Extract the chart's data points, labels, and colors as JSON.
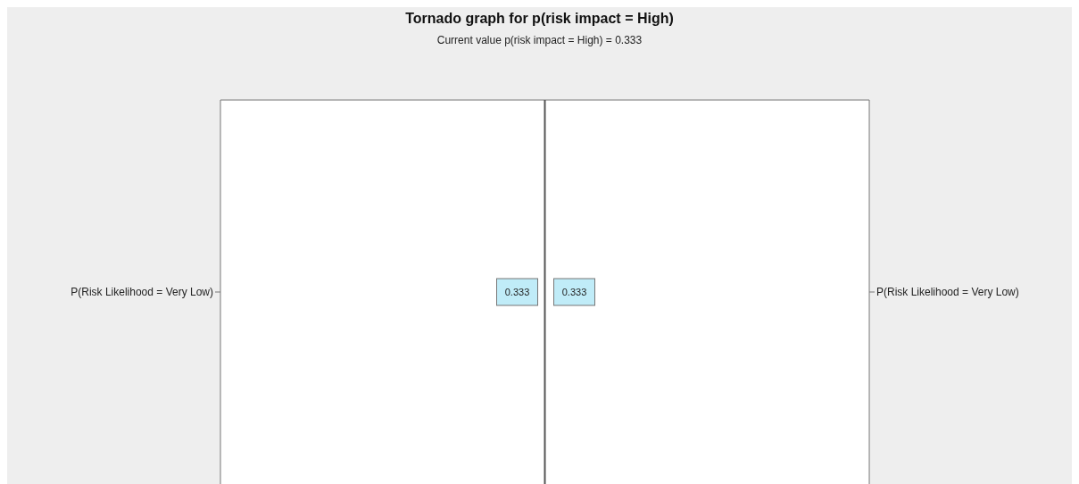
{
  "chart_data": {
    "type": "other",
    "title": "Tornado graph for p(risk impact = High)",
    "subtitle": "Current value p(risk impact = High) = 0.333",
    "categories": [
      "P(Risk Likelihood = Very Low)"
    ],
    "series": [
      {
        "color": "#c0ecf8",
        "values": [
          0.333
        ]
      },
      {
        "color": "#c0ecf8",
        "values": [
          0.333
        ]
      }
    ],
    "data_labels": true
  }
}
